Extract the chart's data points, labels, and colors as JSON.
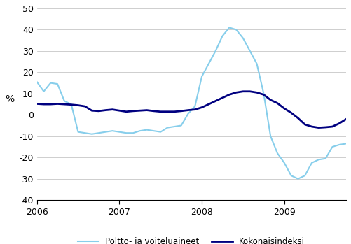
{
  "ylabel": "%",
  "ylim": [
    -40,
    50
  ],
  "yticks": [
    -40,
    -30,
    -20,
    -10,
    0,
    10,
    20,
    30,
    40,
    50
  ],
  "xtick_positions": [
    0,
    12,
    24,
    36
  ],
  "xtick_labels": [
    "2006",
    "2007",
    "2008",
    "2009"
  ],
  "xlim": [
    0,
    45
  ],
  "kokonaisindeksi_color": "#000080",
  "poltto_color": "#87CEEB",
  "legend_labels": [
    "Kokonaisindeksi",
    "Poltto- ja voiteluaineet"
  ],
  "kokonaisindeksi": [
    5.2,
    5.0,
    5.0,
    5.2,
    5.0,
    4.8,
    4.5,
    4.0,
    2.0,
    1.8,
    2.2,
    2.5,
    2.0,
    1.5,
    1.8,
    2.0,
    2.2,
    1.8,
    1.5,
    1.5,
    1.5,
    1.8,
    2.2,
    2.5,
    3.5,
    5.0,
    6.5,
    8.0,
    9.5,
    10.5,
    11.0,
    11.0,
    10.5,
    9.5,
    7.0,
    5.5,
    3.0,
    1.0,
    -1.5,
    -4.5,
    -5.5,
    -6.0,
    -5.8,
    -5.5,
    -4.0,
    -2.0
  ],
  "poltto_ja_voiteluaineet": [
    15.5,
    11.0,
    15.0,
    14.5,
    6.5,
    5.0,
    -8.0,
    -8.5,
    -9.0,
    -8.5,
    -8.0,
    -7.5,
    -8.0,
    -8.5,
    -8.5,
    -7.5,
    -7.0,
    -7.5,
    -8.0,
    -6.0,
    -5.5,
    -5.0,
    0.5,
    4.0,
    18.0,
    24.0,
    30.0,
    37.0,
    41.0,
    40.0,
    36.0,
    30.0,
    24.0,
    10.0,
    -10.0,
    -18.0,
    -22.5,
    -28.5,
    -30.0,
    -28.5,
    -22.5,
    -21.0,
    -20.5,
    -15.0,
    -14.0,
    -13.5
  ]
}
